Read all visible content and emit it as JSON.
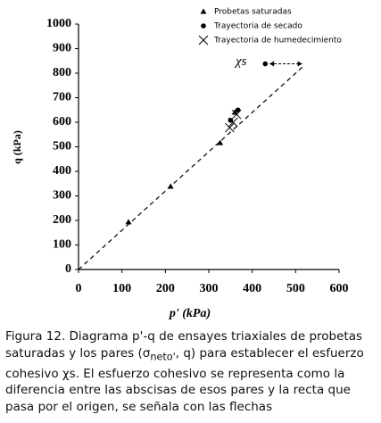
{
  "chart_data": {
    "type": "scatter",
    "xlabel": "p' (kPa)",
    "ylabel": "q (kPa)",
    "xlim": [
      0,
      600
    ],
    "xticks": [
      0,
      100,
      200,
      300,
      400,
      500,
      600
    ],
    "ylim": [
      0,
      1000
    ],
    "yticks": [
      0,
      100,
      200,
      300,
      400,
      500,
      600,
      700,
      800,
      900,
      1000
    ],
    "series": [
      {
        "name": "Probetas saturadas",
        "marker": "triangle",
        "color": "#000000",
        "x": [
          115,
          212,
          326,
          360
        ],
        "values": [
          193,
          338,
          516,
          640
        ]
      },
      {
        "name": "Trayectoria de secado",
        "marker": "dot",
        "color": "#000000",
        "x": [
          350,
          367,
          430
        ],
        "values": [
          608,
          650,
          838
        ]
      },
      {
        "name": "Trayectoria de humedecimiento",
        "marker": "cross",
        "color": "#000000",
        "x": [
          348,
          356,
          364
        ],
        "values": [
          578,
          600,
          632
        ]
      }
    ],
    "fit_line": {
      "x": [
        0,
        520
      ],
      "values": [
        0,
        832
      ]
    },
    "annotation": {
      "text": "χs",
      "arrow_x": [
        440,
        515
      ],
      "arrow_y": 838
    }
  },
  "caption": {
    "parts": [
      "Figura 12. Diagrama p'-q de ensayes triaxiales de probetas saturadas y los pares (σ",
      "neto'",
      ", q)   para establecer el esfuerzo cohesivo χs. El esfuerzo cohesivo se representa como la diferencia entre las abscisas de esos pares y la recta que pasa por el origen, se señala con las flechas"
    ]
  }
}
